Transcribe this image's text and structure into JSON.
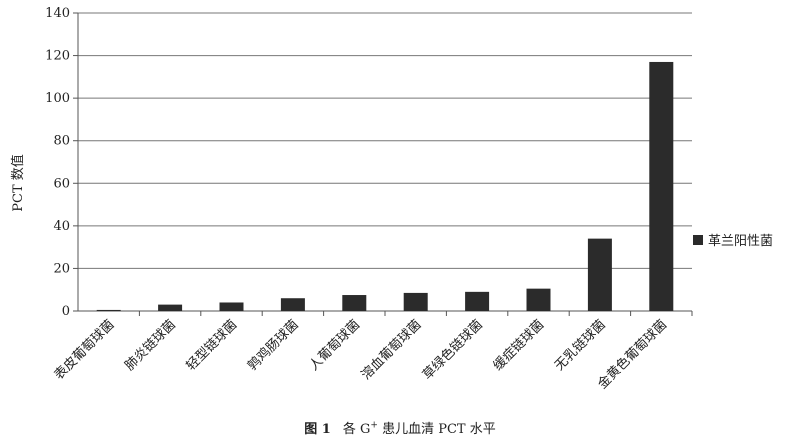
{
  "chart_data": {
    "type": "bar",
    "categories": [
      "表皮葡萄球菌",
      "肺炎链球菌",
      "轻型链球菌",
      "鹑鸡肠球菌",
      "人葡萄球菌",
      "溶血葡萄球菌",
      "草绿色链球菌",
      "缓症链球菌",
      "无乳链球菌",
      "金黄色葡萄球菌"
    ],
    "series": [
      {
        "name": "革兰阳性菌",
        "values": [
          0.5,
          3,
          4,
          6,
          7.5,
          8.5,
          9,
          10.5,
          34,
          117
        ]
      }
    ],
    "xlabel": "",
    "ylabel": "PCT 数值",
    "ylim": [
      0,
      140
    ],
    "yticks": [
      0,
      20,
      40,
      60,
      80,
      100,
      120,
      140
    ],
    "grid": true,
    "legend_position": "right",
    "bar_color": "#2b2b2b"
  },
  "caption": {
    "figure_number": "图 1",
    "text_before": "各 G",
    "superscript": "+",
    "text_after": " 患儿血清 PCT 水平"
  }
}
